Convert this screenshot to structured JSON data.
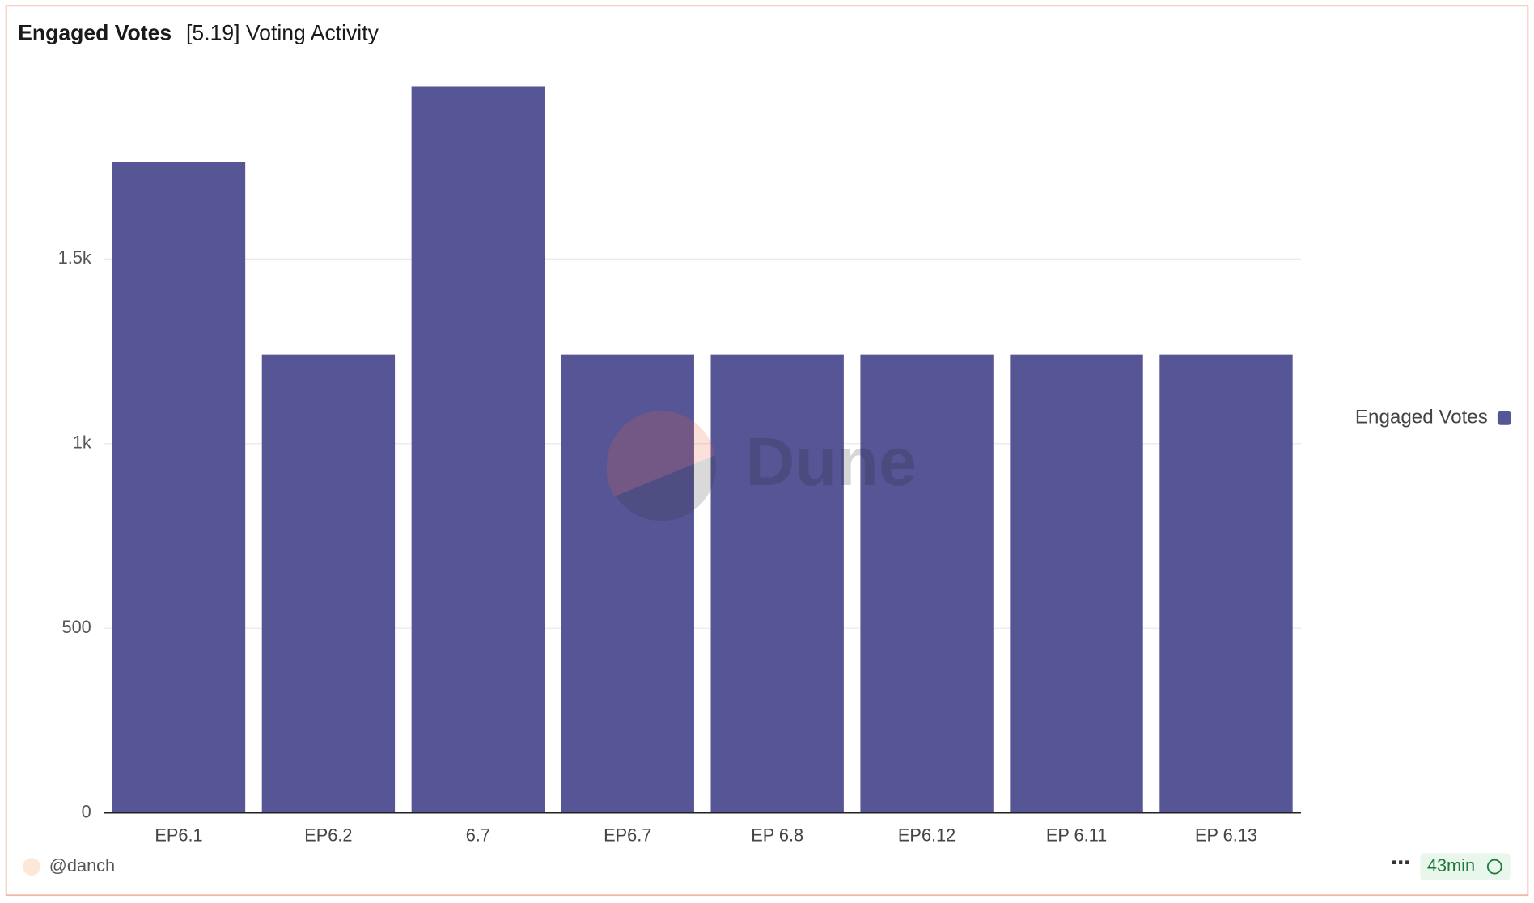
{
  "chart_data": {
    "type": "bar",
    "title": "Engaged Votes",
    "subtitle": "[5.19] Voting Activity",
    "categories": [
      "EP6.1",
      "EP6.2",
      "6.7",
      "EP6.7",
      "EP 6.8",
      "EP6.12",
      "EP 6.11",
      "EP 6.13"
    ],
    "series": [
      {
        "name": "Engaged Votes",
        "color": "#565596",
        "values": [
          1762,
          1241,
          1968,
          1241,
          1241,
          1241,
          1241,
          1241
        ]
      }
    ],
    "ylim": [
      0,
      2000
    ],
    "yticks": [
      0,
      500,
      {
        "value": 1000,
        "label": "1k"
      },
      {
        "value": 1500,
        "label": "1.5k"
      }
    ],
    "grid": true,
    "legend": "right",
    "watermark": "Dune",
    "author": "@danch",
    "refresh": "43min"
  }
}
